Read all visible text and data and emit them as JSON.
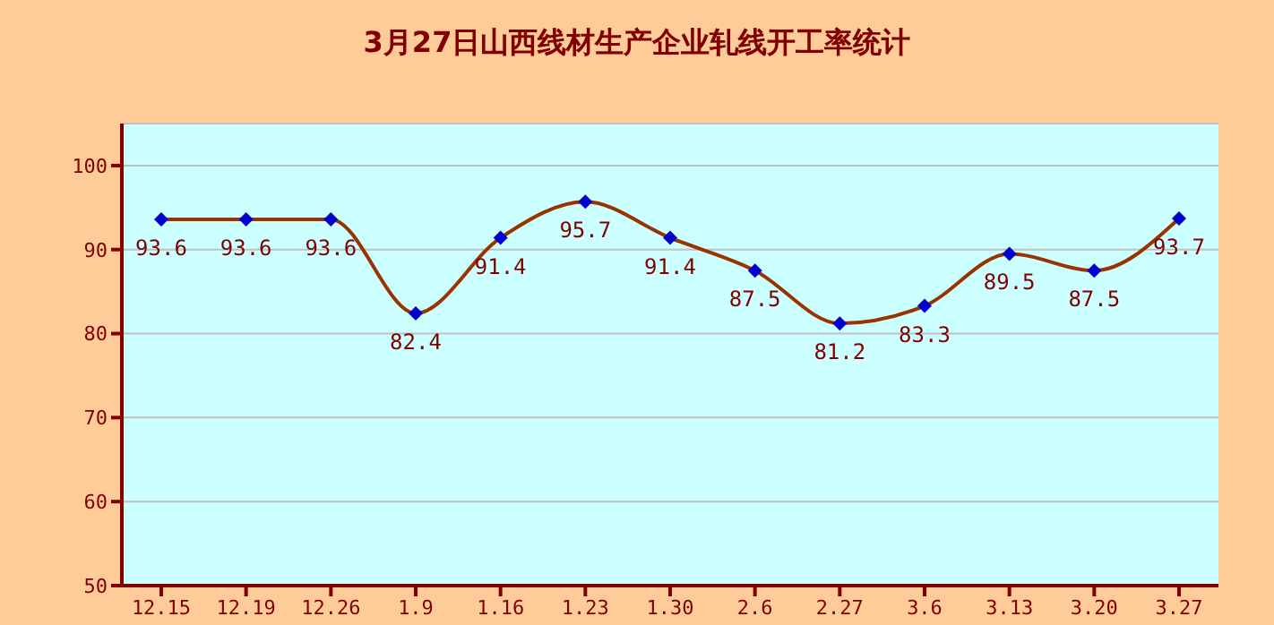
{
  "chart_data": {
    "type": "line",
    "title": "3月27日山西线材生产企业轧线开工率统计",
    "categories": [
      "12.15",
      "12.19",
      "12.26",
      "1.9",
      "1.16",
      "1.23",
      "1.30",
      "2.6",
      "2.27",
      "3.6",
      "3.13",
      "3.20",
      "3.27"
    ],
    "series": [
      {
        "color": "#993300",
        "values": [
          93.6,
          93.6,
          93.6,
          82.4,
          91.4,
          95.7,
          91.4,
          87.5,
          81.2,
          83.3,
          89.5,
          87.5,
          93.7
        ]
      }
    ],
    "ylim": [
      50,
      105
    ],
    "yticks": [
      50,
      60,
      70,
      80,
      90,
      100
    ],
    "grid": "y",
    "marker": "diamond",
    "line_style": "solid",
    "data_labels": true
  }
}
